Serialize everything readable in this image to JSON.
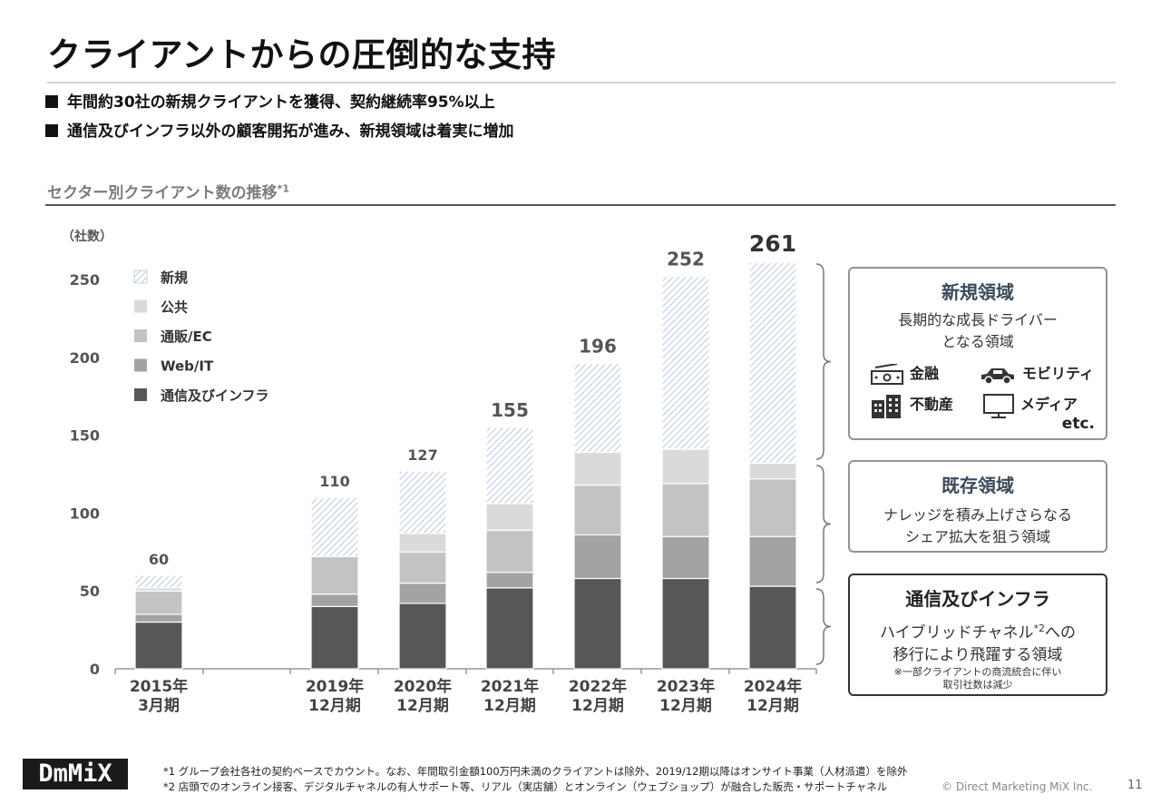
{
  "header": {
    "title": "クライアントからの圧倒的な支持",
    "bullets": [
      "年間約30社の新規クライアントを獲得、契約継続率95%以上",
      "通信及びインフラ以外の顧客開拓が進み、新規領域は着実に増加"
    ]
  },
  "section": {
    "title": "セクター別クライアント数の推移",
    "title_sup": "*1"
  },
  "chart_data": {
    "type": "bar",
    "stacked": true,
    "unit_label": "（社数）",
    "ylim": [
      0,
      250
    ],
    "yticks": [
      "0",
      "50",
      "100",
      "150",
      "200",
      "250"
    ],
    "categories": [
      [
        "2015年",
        "3月期"
      ],
      [
        "2019年",
        "12月期"
      ],
      [
        "2020年",
        "12月期"
      ],
      [
        "2021年",
        "12月期"
      ],
      [
        "2022年",
        "12月期"
      ],
      [
        "2023年",
        "12月期"
      ],
      [
        "2024年",
        "12月期"
      ]
    ],
    "series": [
      {
        "name": "通信及びインフラ",
        "color": "#575757",
        "values": [
          30,
          40,
          42,
          52,
          58,
          58,
          53
        ]
      },
      {
        "name": "Web/IT",
        "color": "#a3a3a3",
        "values": [
          5,
          8,
          13,
          10,
          28,
          27,
          32
        ]
      },
      {
        "name": "通販/EC",
        "color": "#c3c3c3",
        "values": [
          15,
          24,
          20,
          27,
          32,
          34,
          37
        ]
      },
      {
        "name": "公共",
        "color": "#dadada",
        "values": [
          2,
          0,
          12,
          17,
          21,
          22,
          10
        ]
      },
      {
        "name": "新規",
        "color": "#c9d6e6",
        "pattern": "hatch",
        "values": [
          8,
          38,
          40,
          49,
          57,
          111,
          129
        ]
      }
    ],
    "totals": [
      "60",
      "110",
      "127",
      "155",
      "196",
      "252",
      "261"
    ],
    "legend_order": [
      "新規",
      "公共",
      "通販/EC",
      "Web/IT",
      "通信及びインフラ"
    ]
  },
  "boxes": {
    "new": {
      "title": "新規領域",
      "desc_lines": [
        "長期的な成長ドライバー",
        "となる領域"
      ],
      "items": [
        {
          "icon": "money-icon",
          "label": "金融"
        },
        {
          "icon": "car-icon",
          "label": "モビリティ"
        },
        {
          "icon": "building-icon",
          "label": "不動産"
        },
        {
          "icon": "monitor-icon",
          "label": "メディア"
        }
      ],
      "etc": "etc."
    },
    "existing": {
      "title": "既存領域",
      "desc_lines": [
        "ナレッジを積み上げさらなる",
        "シェア拡大を狙う領域"
      ]
    },
    "telecom": {
      "title": "通信及びインフラ",
      "desc_line1_pre": "ハイブリッドチャネル",
      "desc_line1_sup": "*2",
      "desc_line1_post": "への",
      "desc_line2": "移行により飛躍する領域",
      "notes": [
        "※一部クライアントの商流統合に伴い",
        "取引社数は減少"
      ]
    }
  },
  "footer": {
    "logo": "DmMiX",
    "footnotes": [
      "*1  グループ会社各社の契約ベースでカウント。なお、年間取引金額100万円未満のクライアントは除外、2019/12期以降はオンサイト事業（人材派遣）を除外",
      "*2  店頭でのオンライン接客、デジタルチャネルの有人サポート等、リアル（実店舗）とオンライン（ウェブショップ）が融合した販売・サポートチャネル"
    ],
    "copyright": "© Direct Marketing MiX Inc.",
    "page": "11"
  }
}
